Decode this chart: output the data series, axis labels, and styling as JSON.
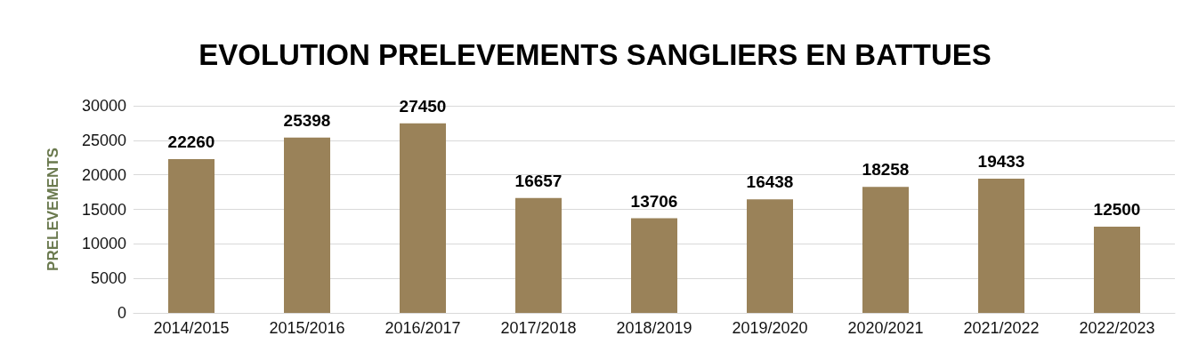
{
  "chart_data": {
    "type": "bar",
    "title": "EVOLUTION PRELEVEMENTS SANGLIERS EN BATTUES",
    "ylabel": "PRELEVEMENTS",
    "categories": [
      "2014/2015",
      "2015/2016",
      "2016/2017",
      "2017/2018",
      "2018/2019",
      "2019/2020",
      "2020/2021",
      "2021/2022",
      "2022/2023"
    ],
    "values": [
      22260,
      25398,
      27450,
      16657,
      13706,
      16438,
      18258,
      19433,
      12500
    ],
    "color": "#9a8259",
    "ylim": [
      0,
      30000
    ],
    "yticks": [
      0,
      5000,
      10000,
      15000,
      20000,
      25000,
      30000
    ],
    "grid": "y",
    "data_labels": true
  }
}
